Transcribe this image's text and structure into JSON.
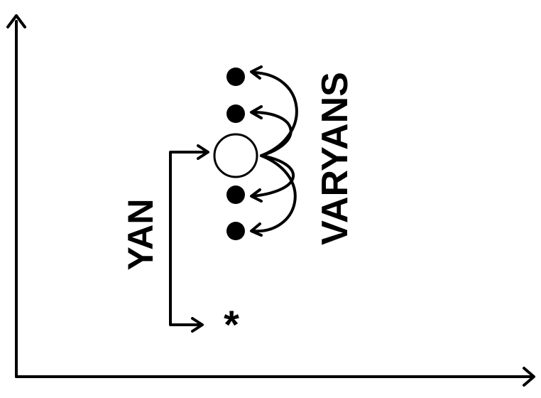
{
  "labels": {
    "bias": "YAN",
    "variance": "VARYANS",
    "target_marker": "*"
  },
  "colors": {
    "stroke": "#000000",
    "point_fill": "#000000",
    "mean_fill": "#ffffff",
    "background": "#ffffff"
  }
}
